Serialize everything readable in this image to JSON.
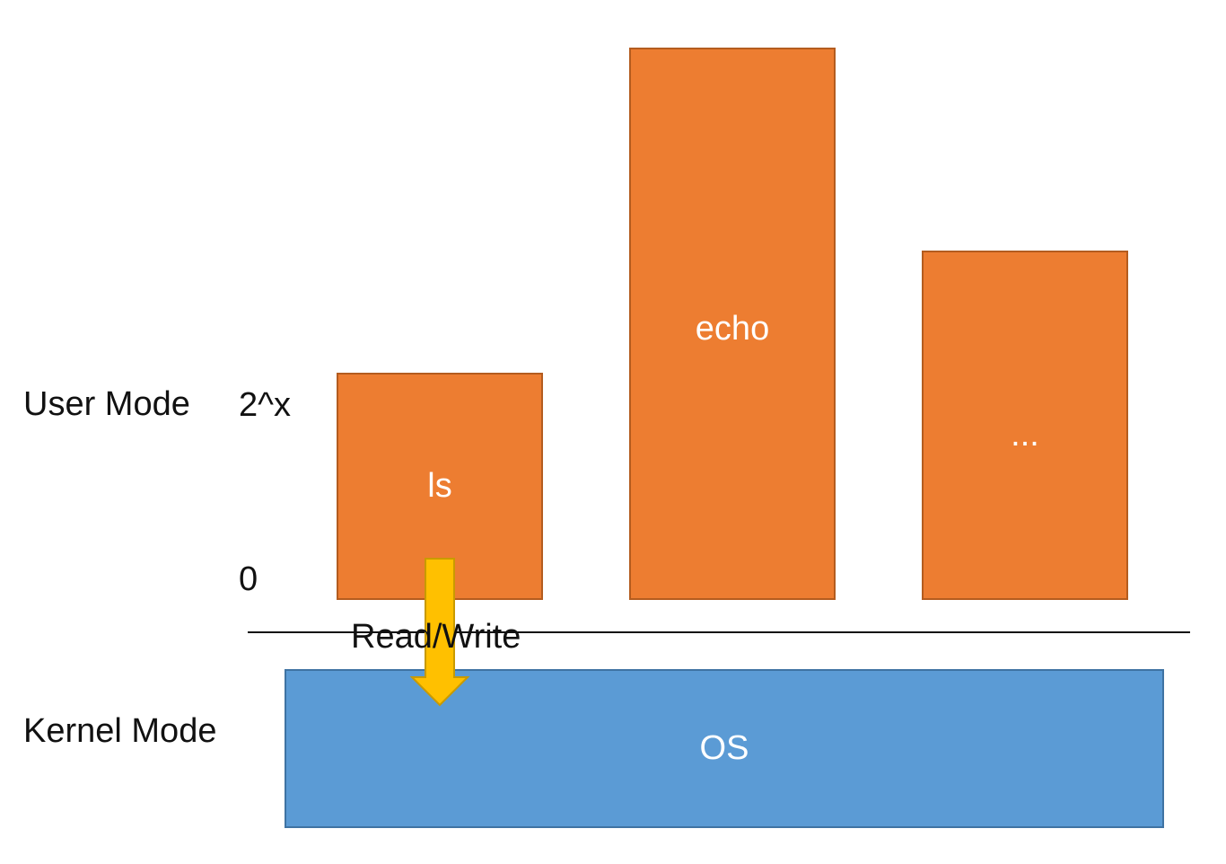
{
  "modes": {
    "user": "User Mode",
    "kernel": "Kernel Mode"
  },
  "address_labels": {
    "top": "2^x",
    "bottom": "0"
  },
  "processes": [
    {
      "label": "ls"
    },
    {
      "label": "echo"
    },
    {
      "label": "..."
    }
  ],
  "os": {
    "label": "OS"
  },
  "arrow": {
    "label": "Read/Write"
  },
  "colors": {
    "process_fill": "#ed7d31",
    "os_fill": "#5b9bd5",
    "arrow_fill": "#ffc000"
  }
}
